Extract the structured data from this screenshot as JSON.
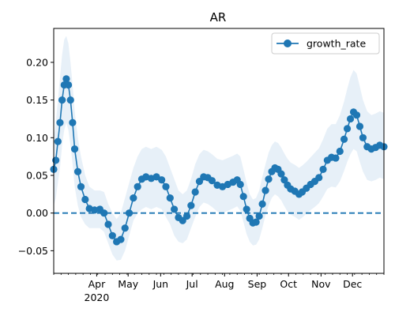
{
  "chart_data": {
    "type": "line",
    "title": "AR",
    "xlabel": "",
    "ylabel": "",
    "x_start": "2020-02-20",
    "x_end": "2020-12-31",
    "xlim": [
      "2020-02-20",
      "2020-12-31"
    ],
    "ylim": [
      -0.08,
      0.245
    ],
    "y_ticks": [
      -0.05,
      0.0,
      0.05,
      0.1,
      0.15,
      0.2
    ],
    "y_tick_labels": [
      "−0.05",
      "0.00",
      "0.05",
      "0.10",
      "0.15",
      "0.20"
    ],
    "x_ticks": [
      {
        "date": "2020-04-01",
        "label": "Apr",
        "sublabel": "2020"
      },
      {
        "date": "2020-05-01",
        "label": "May",
        "sublabel": ""
      },
      {
        "date": "2020-06-01",
        "label": "Jun",
        "sublabel": ""
      },
      {
        "date": "2020-07-01",
        "label": "Jul",
        "sublabel": ""
      },
      {
        "date": "2020-08-01",
        "label": "Aug",
        "sublabel": ""
      },
      {
        "date": "2020-09-01",
        "label": "Sep",
        "sublabel": ""
      },
      {
        "date": "2020-10-01",
        "label": "Oct",
        "sublabel": ""
      },
      {
        "date": "2020-11-01",
        "label": "Nov",
        "sublabel": ""
      },
      {
        "date": "2020-12-01",
        "label": "Dec",
        "sublabel": ""
      }
    ],
    "reference_line": {
      "y": 0.0,
      "style": "dashed",
      "color": "#1f77b4"
    },
    "series": [
      {
        "name": "growth_rate",
        "color": "#1f77b4",
        "marker": "circle",
        "band_color": "#c6dbef",
        "points": [
          {
            "x": "2020-02-20",
            "y": 0.058,
            "lo": 0.01,
            "hi": 0.1
          },
          {
            "x": "2020-02-22",
            "y": 0.07,
            "lo": 0.02,
            "hi": 0.12
          },
          {
            "x": "2020-02-24",
            "y": 0.095,
            "lo": 0.04,
            "hi": 0.15
          },
          {
            "x": "2020-02-26",
            "y": 0.12,
            "lo": 0.06,
            "hi": 0.18
          },
          {
            "x": "2020-02-28",
            "y": 0.15,
            "lo": 0.09,
            "hi": 0.21
          },
          {
            "x": "2020-03-01",
            "y": 0.17,
            "lo": 0.11,
            "hi": 0.23
          },
          {
            "x": "2020-03-03",
            "y": 0.178,
            "lo": 0.12,
            "hi": 0.235
          },
          {
            "x": "2020-03-05",
            "y": 0.17,
            "lo": 0.11,
            "hi": 0.225
          },
          {
            "x": "2020-03-07",
            "y": 0.15,
            "lo": 0.09,
            "hi": 0.2
          },
          {
            "x": "2020-03-09",
            "y": 0.12,
            "lo": 0.065,
            "hi": 0.17
          },
          {
            "x": "2020-03-11",
            "y": 0.085,
            "lo": 0.035,
            "hi": 0.135
          },
          {
            "x": "2020-03-14",
            "y": 0.055,
            "lo": 0.01,
            "hi": 0.1
          },
          {
            "x": "2020-03-17",
            "y": 0.035,
            "lo": -0.005,
            "hi": 0.075
          },
          {
            "x": "2020-03-21",
            "y": 0.018,
            "lo": -0.015,
            "hi": 0.05
          },
          {
            "x": "2020-03-25",
            "y": 0.006,
            "lo": -0.02,
            "hi": 0.035
          },
          {
            "x": "2020-03-30",
            "y": 0.004,
            "lo": -0.02,
            "hi": 0.03
          },
          {
            "x": "2020-04-04",
            "y": 0.005,
            "lo": -0.02,
            "hi": 0.03
          },
          {
            "x": "2020-04-08",
            "y": 0.0,
            "lo": -0.025,
            "hi": 0.028
          },
          {
            "x": "2020-04-12",
            "y": -0.015,
            "lo": -0.04,
            "hi": 0.012
          },
          {
            "x": "2020-04-16",
            "y": -0.03,
            "lo": -0.055,
            "hi": 0.0
          },
          {
            "x": "2020-04-20",
            "y": -0.038,
            "lo": -0.063,
            "hi": -0.008
          },
          {
            "x": "2020-04-24",
            "y": -0.035,
            "lo": -0.062,
            "hi": 0.0
          },
          {
            "x": "2020-04-28",
            "y": -0.02,
            "lo": -0.05,
            "hi": 0.02
          },
          {
            "x": "2020-05-02",
            "y": 0.0,
            "lo": -0.03,
            "hi": 0.04
          },
          {
            "x": "2020-05-06",
            "y": 0.02,
            "lo": -0.01,
            "hi": 0.06
          },
          {
            "x": "2020-05-10",
            "y": 0.035,
            "lo": 0.0,
            "hi": 0.075
          },
          {
            "x": "2020-05-14",
            "y": 0.045,
            "lo": 0.005,
            "hi": 0.085
          },
          {
            "x": "2020-05-18",
            "y": 0.048,
            "lo": 0.008,
            "hi": 0.088
          },
          {
            "x": "2020-05-23",
            "y": 0.046,
            "lo": 0.005,
            "hi": 0.085
          },
          {
            "x": "2020-05-28",
            "y": 0.048,
            "lo": 0.008,
            "hi": 0.088
          },
          {
            "x": "2020-06-02",
            "y": 0.044,
            "lo": 0.005,
            "hi": 0.084
          },
          {
            "x": "2020-06-06",
            "y": 0.035,
            "lo": -0.005,
            "hi": 0.075
          },
          {
            "x": "2020-06-10",
            "y": 0.02,
            "lo": -0.015,
            "hi": 0.06
          },
          {
            "x": "2020-06-14",
            "y": 0.005,
            "lo": -0.03,
            "hi": 0.045
          },
          {
            "x": "2020-06-18",
            "y": -0.006,
            "lo": -0.038,
            "hi": 0.03
          },
          {
            "x": "2020-06-22",
            "y": -0.01,
            "lo": -0.04,
            "hi": 0.025
          },
          {
            "x": "2020-06-26",
            "y": -0.004,
            "lo": -0.035,
            "hi": 0.03
          },
          {
            "x": "2020-06-30",
            "y": 0.01,
            "lo": -0.02,
            "hi": 0.045
          },
          {
            "x": "2020-07-04",
            "y": 0.028,
            "lo": -0.005,
            "hi": 0.065
          },
          {
            "x": "2020-07-08",
            "y": 0.042,
            "lo": 0.008,
            "hi": 0.078
          },
          {
            "x": "2020-07-12",
            "y": 0.048,
            "lo": 0.014,
            "hi": 0.084
          },
          {
            "x": "2020-07-16",
            "y": 0.047,
            "lo": 0.012,
            "hi": 0.082
          },
          {
            "x": "2020-07-20",
            "y": 0.043,
            "lo": 0.008,
            "hi": 0.078
          },
          {
            "x": "2020-07-25",
            "y": 0.037,
            "lo": 0.002,
            "hi": 0.072
          },
          {
            "x": "2020-07-30",
            "y": 0.035,
            "lo": 0.0,
            "hi": 0.07
          },
          {
            "x": "2020-08-04",
            "y": 0.038,
            "lo": 0.003,
            "hi": 0.073
          },
          {
            "x": "2020-08-09",
            "y": 0.041,
            "lo": 0.006,
            "hi": 0.076
          },
          {
            "x": "2020-08-13",
            "y": 0.044,
            "lo": 0.009,
            "hi": 0.079
          },
          {
            "x": "2020-08-16",
            "y": 0.038,
            "lo": 0.003,
            "hi": 0.075
          },
          {
            "x": "2020-08-19",
            "y": 0.022,
            "lo": -0.012,
            "hi": 0.058
          },
          {
            "x": "2020-08-22",
            "y": 0.005,
            "lo": -0.028,
            "hi": 0.04
          },
          {
            "x": "2020-08-25",
            "y": -0.007,
            "lo": -0.038,
            "hi": 0.025
          },
          {
            "x": "2020-08-28",
            "y": -0.013,
            "lo": -0.043,
            "hi": 0.018
          },
          {
            "x": "2020-08-31",
            "y": -0.012,
            "lo": -0.042,
            "hi": 0.02
          },
          {
            "x": "2020-09-03",
            "y": -0.004,
            "lo": -0.035,
            "hi": 0.03
          },
          {
            "x": "2020-09-06",
            "y": 0.012,
            "lo": -0.02,
            "hi": 0.048
          },
          {
            "x": "2020-09-09",
            "y": 0.03,
            "lo": -0.003,
            "hi": 0.065
          },
          {
            "x": "2020-09-12",
            "y": 0.045,
            "lo": 0.01,
            "hi": 0.08
          },
          {
            "x": "2020-09-15",
            "y": 0.055,
            "lo": 0.02,
            "hi": 0.09
          },
          {
            "x": "2020-09-18",
            "y": 0.06,
            "lo": 0.025,
            "hi": 0.095
          },
          {
            "x": "2020-09-21",
            "y": 0.058,
            "lo": 0.022,
            "hi": 0.093
          },
          {
            "x": "2020-09-24",
            "y": 0.052,
            "lo": 0.017,
            "hi": 0.087
          },
          {
            "x": "2020-09-27",
            "y": 0.044,
            "lo": 0.009,
            "hi": 0.079
          },
          {
            "x": "2020-09-30",
            "y": 0.037,
            "lo": 0.002,
            "hi": 0.072
          },
          {
            "x": "2020-10-03",
            "y": 0.032,
            "lo": -0.002,
            "hi": 0.067
          },
          {
            "x": "2020-10-07",
            "y": 0.029,
            "lo": -0.005,
            "hi": 0.064
          },
          {
            "x": "2020-10-11",
            "y": 0.025,
            "lo": -0.009,
            "hi": 0.06
          },
          {
            "x": "2020-10-14",
            "y": 0.028,
            "lo": -0.006,
            "hi": 0.063
          },
          {
            "x": "2020-10-18",
            "y": 0.033,
            "lo": -0.001,
            "hi": 0.068
          },
          {
            "x": "2020-10-22",
            "y": 0.038,
            "lo": 0.004,
            "hi": 0.074
          },
          {
            "x": "2020-10-26",
            "y": 0.042,
            "lo": 0.008,
            "hi": 0.08
          },
          {
            "x": "2020-10-30",
            "y": 0.047,
            "lo": 0.013,
            "hi": 0.086
          },
          {
            "x": "2020-11-03",
            "y": 0.058,
            "lo": 0.022,
            "hi": 0.098
          },
          {
            "x": "2020-11-07",
            "y": 0.07,
            "lo": 0.032,
            "hi": 0.112
          },
          {
            "x": "2020-11-11",
            "y": 0.074,
            "lo": 0.035,
            "hi": 0.118
          },
          {
            "x": "2020-11-15",
            "y": 0.073,
            "lo": 0.034,
            "hi": 0.118
          },
          {
            "x": "2020-11-19",
            "y": 0.082,
            "lo": 0.042,
            "hi": 0.13
          },
          {
            "x": "2020-11-23",
            "y": 0.098,
            "lo": 0.056,
            "hi": 0.148
          },
          {
            "x": "2020-11-26",
            "y": 0.112,
            "lo": 0.068,
            "hi": 0.165
          },
          {
            "x": "2020-11-29",
            "y": 0.125,
            "lo": 0.078,
            "hi": 0.18
          },
          {
            "x": "2020-12-02",
            "y": 0.134,
            "lo": 0.085,
            "hi": 0.19
          },
          {
            "x": "2020-12-05",
            "y": 0.13,
            "lo": 0.082,
            "hi": 0.185
          },
          {
            "x": "2020-12-08",
            "y": 0.115,
            "lo": 0.068,
            "hi": 0.168
          },
          {
            "x": "2020-12-11",
            "y": 0.1,
            "lo": 0.055,
            "hi": 0.15
          },
          {
            "x": "2020-12-15",
            "y": 0.088,
            "lo": 0.044,
            "hi": 0.135
          },
          {
            "x": "2020-12-19",
            "y": 0.085,
            "lo": 0.042,
            "hi": 0.13
          },
          {
            "x": "2020-12-23",
            "y": 0.087,
            "lo": 0.044,
            "hi": 0.132
          },
          {
            "x": "2020-12-27",
            "y": 0.09,
            "lo": 0.047,
            "hi": 0.135
          },
          {
            "x": "2020-12-31",
            "y": 0.088,
            "lo": 0.045,
            "hi": 0.133
          }
        ]
      }
    ],
    "legend": {
      "position": "top-right",
      "entries": [
        "growth_rate"
      ]
    },
    "grid": false
  }
}
